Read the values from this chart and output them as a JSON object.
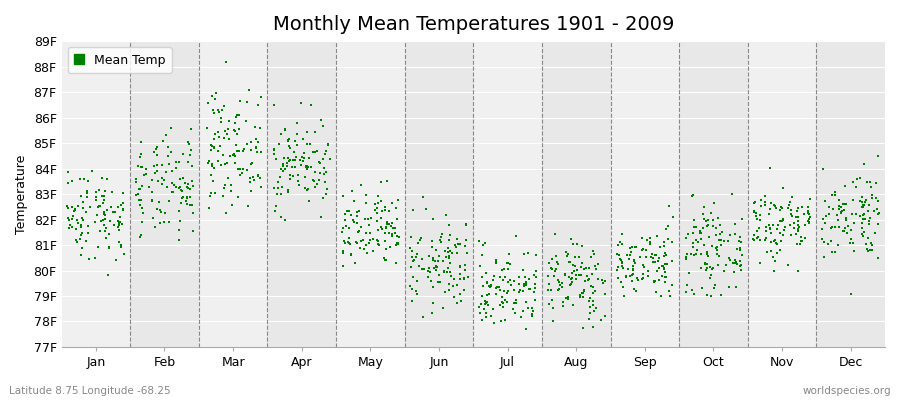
{
  "title": "Monthly Mean Temperatures 1901 - 2009",
  "ylabel": "Temperature",
  "xlabel_bottom_left": "Latitude 8.75 Longitude -68.25",
  "xlabel_bottom_right": "worldspecies.org",
  "legend_label": "Mean Temp",
  "ylim": [
    77,
    89
  ],
  "months": [
    "Jan",
    "Feb",
    "Mar",
    "Apr",
    "May",
    "Jun",
    "Jul",
    "Aug",
    "Sep",
    "Oct",
    "Nov",
    "Dec"
  ],
  "dot_color": "#008000",
  "dot_size": 2,
  "background_color": "#ffffff",
  "plot_bg_color": "#f0f0f0",
  "stripe_color": "#e8e8e8",
  "title_fontsize": 14,
  "axis_fontsize": 9,
  "tick_fontsize": 9,
  "month_means": [
    82.2,
    83.2,
    84.8,
    84.2,
    81.5,
    80.2,
    79.3,
    79.6,
    80.3,
    80.8,
    81.8,
    82.2
  ],
  "month_stds": [
    0.9,
    1.0,
    1.1,
    0.9,
    0.8,
    0.9,
    0.8,
    0.8,
    0.7,
    0.8,
    0.8,
    0.9
  ],
  "month_mins": [
    79.5,
    81.0,
    82.0,
    82.0,
    79.5,
    77.5,
    77.0,
    77.2,
    79.0,
    79.0,
    80.0,
    78.5
  ],
  "month_maxs": [
    85.5,
    86.5,
    88.5,
    87.0,
    85.5,
    83.0,
    82.5,
    82.5,
    83.0,
    83.0,
    84.5,
    84.5
  ],
  "num_years": 109,
  "seed": 42
}
